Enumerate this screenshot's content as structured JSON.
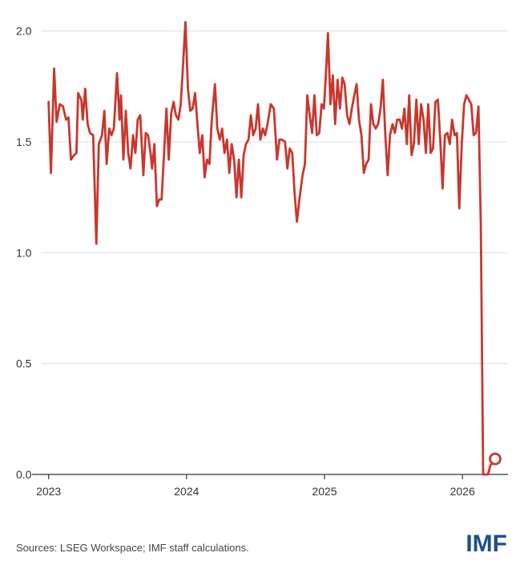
{
  "chart_data": {
    "type": "line",
    "x": [
      2023.0,
      2023.017,
      2023.04,
      2023.058,
      2023.081,
      2023.104,
      2023.127,
      2023.144,
      2023.162,
      2023.185,
      2023.202,
      2023.214,
      2023.237,
      2023.248,
      2023.265,
      2023.283,
      2023.3,
      2023.323,
      2023.346,
      2023.364,
      2023.387,
      2023.404,
      2023.421,
      2023.439,
      2023.456,
      2023.473,
      2023.496,
      2023.514,
      2023.525,
      2023.542,
      2023.56,
      2023.577,
      2023.594,
      2023.612,
      2023.629,
      2023.646,
      2023.664,
      2023.687,
      2023.704,
      2023.721,
      2023.739,
      2023.75,
      2023.767,
      2023.785,
      2023.802,
      2023.819,
      2023.837,
      2023.854,
      2023.871,
      2023.889,
      2023.906,
      2023.923,
      2023.941,
      2023.958,
      2023.975,
      2023.992,
      2024.01,
      2024.027,
      2024.044,
      2024.062,
      2024.079,
      2024.096,
      2024.114,
      2024.131,
      2024.148,
      2024.166,
      2024.183,
      2024.206,
      2024.223,
      2024.241,
      2024.258,
      2024.275,
      2024.293,
      2024.31,
      2024.327,
      2024.345,
      2024.362,
      2024.379,
      2024.397,
      2024.414,
      2024.431,
      2024.449,
      2024.466,
      2024.483,
      2024.501,
      2024.518,
      2024.535,
      2024.553,
      2024.57,
      2024.587,
      2024.61,
      2024.633,
      2024.656,
      2024.673,
      2024.691,
      2024.714,
      2024.731,
      2024.748,
      2024.766,
      2024.783,
      2024.8,
      2024.818,
      2024.841,
      2024.858,
      2024.875,
      2024.893,
      2024.91,
      2024.927,
      2024.944,
      2024.962,
      2024.979,
      2024.996,
      2025.008,
      2025.025,
      2025.043,
      2025.06,
      2025.077,
      2025.095,
      2025.112,
      2025.129,
      2025.146,
      2025.164,
      2025.181,
      2025.198,
      2025.216,
      2025.233,
      2025.25,
      2025.268,
      2025.285,
      2025.302,
      2025.32,
      2025.337,
      2025.354,
      2025.371,
      2025.389,
      2025.406,
      2025.423,
      2025.441,
      2025.458,
      2025.475,
      2025.493,
      2025.51,
      2025.527,
      2025.545,
      2025.562,
      2025.579,
      2025.597,
      2025.614,
      2025.631,
      2025.648,
      2025.666,
      2025.683,
      2025.7,
      2025.718,
      2025.735,
      2025.752,
      2025.77,
      2025.787,
      2025.804,
      2025.822,
      2025.839,
      2025.856,
      2025.873,
      2025.891,
      2025.908,
      2025.925,
      2025.943,
      2025.96,
      2025.977,
      2025.995,
      2026.012,
      2026.029,
      2026.047,
      2026.064,
      2026.081,
      2026.098,
      2026.116,
      2026.133,
      2026.15,
      2026.168,
      2026.185,
      2026.202,
      2026.237
    ],
    "series": [
      {
        "color": "#c8372d",
        "values": [
          1.68,
          1.36,
          1.83,
          1.59,
          1.67,
          1.66,
          1.6,
          1.61,
          1.42,
          1.44,
          1.45,
          1.72,
          1.69,
          1.6,
          1.74,
          1.58,
          1.54,
          1.53,
          1.04,
          1.49,
          1.53,
          1.64,
          1.4,
          1.56,
          1.53,
          1.56,
          1.81,
          1.6,
          1.71,
          1.42,
          1.64,
          1.45,
          1.38,
          1.53,
          1.45,
          1.6,
          1.62,
          1.35,
          1.54,
          1.53,
          1.45,
          1.38,
          1.49,
          1.21,
          1.24,
          1.24,
          1.45,
          1.65,
          1.42,
          1.63,
          1.68,
          1.62,
          1.6,
          1.67,
          1.85,
          2.04,
          1.74,
          1.64,
          1.65,
          1.72,
          1.58,
          1.45,
          1.53,
          1.34,
          1.42,
          1.4,
          1.6,
          1.76,
          1.56,
          1.51,
          1.56,
          1.45,
          1.51,
          1.36,
          1.49,
          1.42,
          1.25,
          1.42,
          1.25,
          1.44,
          1.49,
          1.51,
          1.62,
          1.53,
          1.56,
          1.67,
          1.51,
          1.56,
          1.53,
          1.58,
          1.67,
          1.65,
          1.42,
          1.51,
          1.51,
          1.5,
          1.38,
          1.47,
          1.45,
          1.27,
          1.14,
          1.24,
          1.35,
          1.4,
          1.71,
          1.62,
          1.54,
          1.71,
          1.53,
          1.54,
          1.67,
          1.65,
          1.78,
          1.99,
          1.67,
          1.8,
          1.58,
          1.78,
          1.65,
          1.79,
          1.76,
          1.62,
          1.58,
          1.65,
          1.71,
          1.76,
          1.6,
          1.53,
          1.36,
          1.4,
          1.42,
          1.67,
          1.58,
          1.56,
          1.58,
          1.65,
          1.78,
          1.53,
          1.35,
          1.53,
          1.58,
          1.54,
          1.6,
          1.6,
          1.56,
          1.65,
          1.49,
          1.71,
          1.44,
          1.49,
          1.69,
          1.49,
          1.67,
          1.6,
          1.45,
          1.67,
          1.45,
          1.47,
          1.68,
          1.69,
          1.51,
          1.29,
          1.53,
          1.54,
          1.49,
          1.6,
          1.53,
          1.54,
          1.2,
          1.49,
          1.67,
          1.71,
          1.69,
          1.67,
          1.53,
          1.54,
          1.66,
          1.13,
          0.0,
          0.0,
          0.0,
          0.04,
          0.07
        ]
      }
    ],
    "xlim": [
      2022.88,
      2026.33
    ],
    "xticks": [
      2023,
      2024,
      2025,
      2026
    ],
    "ylim": [
      0,
      2.1
    ],
    "yticks": [
      {
        "value": 0,
        "label": "0.0"
      },
      0.5,
      {
        "value": 1,
        "label": "1.0"
      },
      1.5,
      {
        "value": 2,
        "label": "2.0"
      }
    ],
    "grid": true,
    "last_point_marker": true
  },
  "footer": {
    "source": "Sources: LSEG Workspace; IMF staff calculations.",
    "logo": "IMF"
  }
}
